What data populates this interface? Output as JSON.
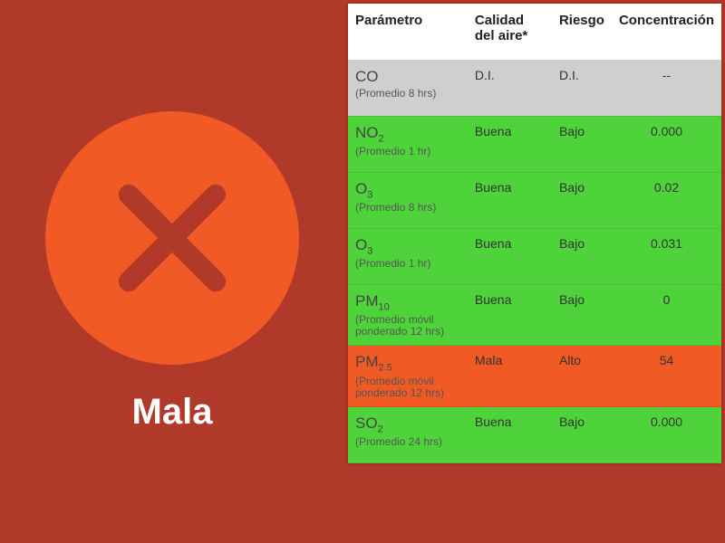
{
  "colors": {
    "background": "#b1392a",
    "circle": "#f15a24",
    "x_stroke": "#b1392a",
    "status_text": "#ffffff",
    "row_header_bg": "#ffffff",
    "row_di_bg": "#cfcfcf",
    "row_good_bg": "#4fd33a",
    "row_bad_bg": "#f15a24"
  },
  "status": {
    "label": "Mala"
  },
  "table": {
    "headers": {
      "parametro": "Parámetro",
      "calidad": "Calidad del aire*",
      "riesgo": "Riesgo",
      "concentracion": "Concentración"
    },
    "rows": [
      {
        "name_html": "CO",
        "subtitle": "(Promedio 8 hrs)",
        "calidad": "D.I.",
        "riesgo": "D.I.",
        "conc": "--",
        "bg_key": "row_di_bg"
      },
      {
        "name_html": "NO<sub>2</sub>",
        "subtitle": "(Promedio 1 hr)",
        "calidad": "Buena",
        "riesgo": "Bajo",
        "conc": "0.000",
        "bg_key": "row_good_bg"
      },
      {
        "name_html": "O<sub>3</sub>",
        "subtitle": "(Promedio 8 hrs)",
        "calidad": "Buena",
        "riesgo": "Bajo",
        "conc": "0.02",
        "bg_key": "row_good_bg"
      },
      {
        "name_html": "O<sub>3</sub>",
        "subtitle": "(Promedio 1 hr)",
        "calidad": "Buena",
        "riesgo": "Bajo",
        "conc": "0.031",
        "bg_key": "row_good_bg"
      },
      {
        "name_html": "PM<sub>10</sub>",
        "subtitle": "(Promedio móvil ponderado 12 hrs)",
        "calidad": "Buena",
        "riesgo": "Bajo",
        "conc": "0",
        "bg_key": "row_good_bg"
      },
      {
        "name_html": "PM<sub>2.5</sub>",
        "subtitle": "(Promedio móvil ponderado 12 hrs)",
        "calidad": "Mala",
        "riesgo": "Alto",
        "conc": "54",
        "bg_key": "row_bad_bg"
      },
      {
        "name_html": "SO<sub>2</sub>",
        "subtitle": "(Promedio 24 hrs)",
        "calidad": "Buena",
        "riesgo": "Bajo",
        "conc": "0.000",
        "bg_key": "row_good_bg"
      }
    ]
  }
}
